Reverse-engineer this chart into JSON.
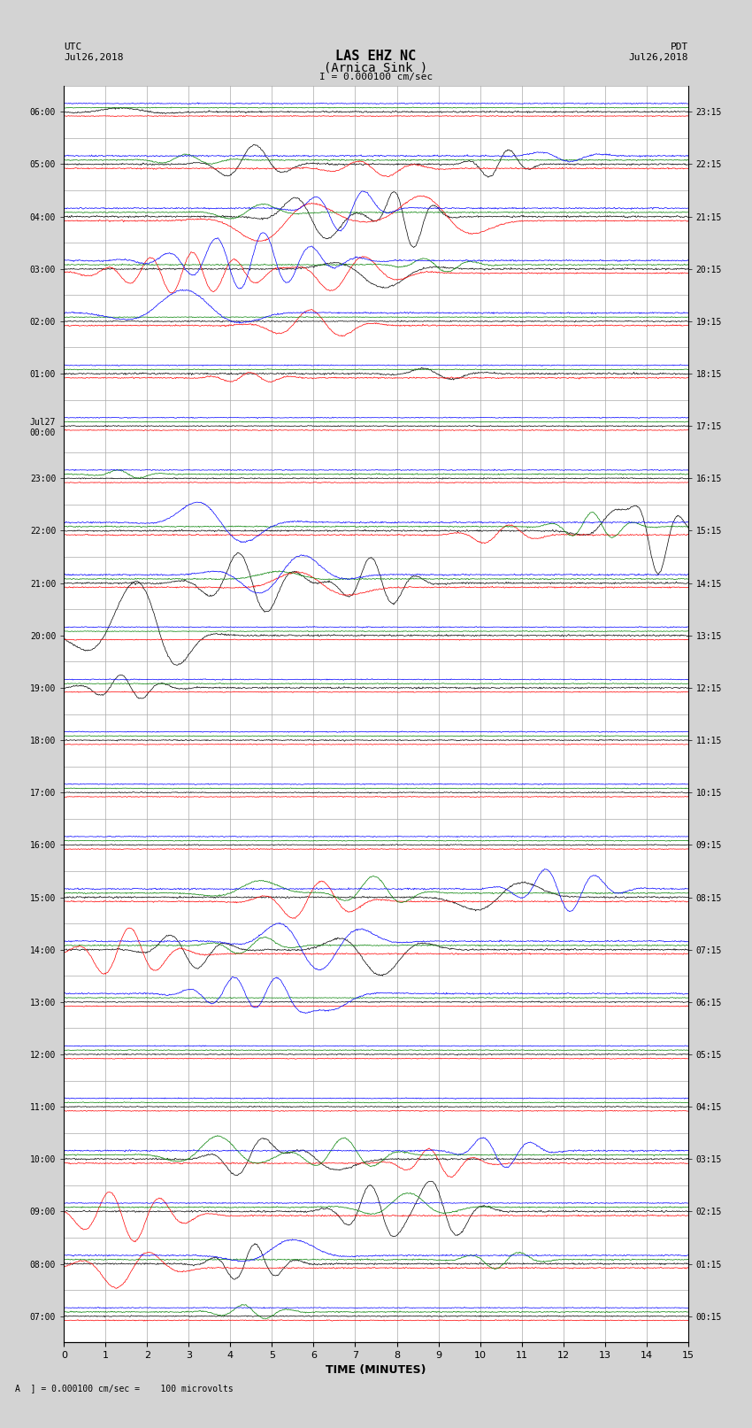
{
  "title_line1": "LAS EHZ NC",
  "title_line2": "(Arnica Sink )",
  "scale_text": "I = 0.000100 cm/sec",
  "left_header": "UTC\nJul26,2018",
  "right_header": "PDT\nJul26,2018",
  "xlabel": "TIME (MINUTES)",
  "footer_text": "A  ] = 0.000100 cm/sec =    100 microvolts",
  "utc_labels": [
    "07:00",
    "08:00",
    "09:00",
    "10:00",
    "11:00",
    "12:00",
    "13:00",
    "14:00",
    "15:00",
    "16:00",
    "17:00",
    "18:00",
    "19:00",
    "20:00",
    "21:00",
    "22:00",
    "23:00",
    "Jul27\n00:00",
    "01:00",
    "02:00",
    "03:00",
    "04:00",
    "05:00",
    "06:00"
  ],
  "pdt_labels": [
    "00:15",
    "01:15",
    "02:15",
    "03:15",
    "04:15",
    "05:15",
    "06:15",
    "07:15",
    "08:15",
    "09:15",
    "10:15",
    "11:15",
    "12:15",
    "13:15",
    "14:15",
    "15:15",
    "16:15",
    "17:15",
    "18:15",
    "19:15",
    "20:15",
    "21:15",
    "22:15",
    "23:15"
  ],
  "n_rows": 24,
  "n_minutes": 15,
  "bg_color": "#d3d3d3",
  "plot_bg": "#ffffff",
  "grid_color": "#aaaaaa",
  "line_colors": [
    "black",
    "red",
    "green",
    "blue"
  ]
}
